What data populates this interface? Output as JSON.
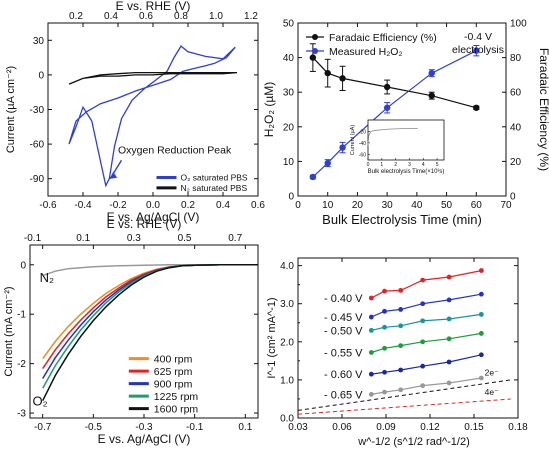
{
  "chart_data": [
    {
      "type": "line",
      "panel": "a",
      "xlabel": "E vs. Ag/AgCl (V)",
      "x2label": "E vs. RHE (V)",
      "ylabel": "Current (µA cm⁻²)",
      "xlim": [
        -0.6,
        0.6
      ],
      "ylim": [
        -105,
        45
      ],
      "xticks": [
        "-0.6",
        "-0.4",
        "-0.2",
        "0.0",
        "0.2",
        "0.4",
        "0.6"
      ],
      "x2ticks": [
        "0.2",
        "0.4",
        "0.6",
        "0.8",
        "1.0",
        "1.2"
      ],
      "yticks": [
        "30",
        "0",
        "-30",
        "-60",
        "-90"
      ],
      "legend": [
        "O₂ saturated PBS",
        "N₂ saturated PBS"
      ],
      "annotation": "Oxygen Reduction Peak",
      "colors": {
        "o2": "#2d3fd6",
        "n2": "#111111"
      },
      "series": [
        {
          "name": "O₂ saturated PBS",
          "x": [
            -0.48,
            -0.44,
            -0.4,
            -0.35,
            -0.3,
            -0.27,
            -0.25,
            -0.22,
            -0.18,
            -0.12,
            -0.05,
            0.02,
            0.08,
            0.12,
            0.16,
            0.2,
            0.3,
            0.4,
            0.47,
            0.42,
            0.35,
            0.3,
            0.22,
            0.17,
            0.15,
            0.1,
            0.0,
            -0.1,
            -0.2,
            -0.3,
            -0.38,
            -0.44,
            -0.48
          ],
          "y": [
            -60,
            -45,
            -28,
            -40,
            -75,
            -96,
            -90,
            -62,
            -38,
            -22,
            -12,
            -4,
            3,
            15,
            25,
            20,
            16,
            14,
            24,
            15,
            10,
            8,
            5,
            3,
            1,
            -4,
            -9,
            -14,
            -20,
            -25,
            -32,
            -40,
            -60
          ]
        },
        {
          "name": "N₂ saturated PBS",
          "x": [
            -0.48,
            -0.4,
            -0.3,
            -0.2,
            -0.1,
            0.0,
            0.1,
            0.2,
            0.3,
            0.4,
            0.48,
            0.4,
            0.3,
            0.2,
            0.1,
            0.0,
            -0.1,
            -0.2,
            -0.3,
            -0.4,
            -0.48
          ],
          "y": [
            -8,
            -3,
            0,
            1,
            2,
            2,
            2,
            2,
            2,
            2,
            2,
            1,
            1,
            1,
            1,
            0,
            0,
            -1,
            -1,
            -3,
            -8
          ]
        }
      ]
    },
    {
      "type": "line",
      "panel": "b",
      "xlabel": "Bulk Electrolysis Time (min)",
      "ylabel": "H₂O₂ (µM)",
      "y2label": "Faradaic Efficiency (%)",
      "xlim": [
        0,
        70
      ],
      "ylim": [
        0,
        50
      ],
      "y2lim": [
        0,
        100
      ],
      "xticks": [
        "0",
        "10",
        "20",
        "30",
        "40",
        "50",
        "60",
        "70"
      ],
      "yticks": [
        "0",
        "10",
        "20",
        "30",
        "40",
        "50"
      ],
      "y2ticks": [
        "0",
        "20",
        "40",
        "60",
        "80",
        "100"
      ],
      "annotation": "-0.4 V electrolysis",
      "series": [
        {
          "name": "Faradaic Efficiency (%)",
          "axis": "right",
          "color": "#111111",
          "x": [
            5,
            10,
            15,
            30,
            45,
            60
          ],
          "y": [
            80,
            71,
            68,
            63,
            58,
            51
          ],
          "err": [
            8,
            8,
            7,
            4,
            2,
            1
          ]
        },
        {
          "name": "Measured H₂O₂",
          "axis": "left",
          "color": "#2d3fd6",
          "x": [
            5,
            10,
            15,
            30,
            45,
            60
          ],
          "y": [
            5.5,
            9.5,
            14,
            25.5,
            35.5,
            42
          ],
          "err": [
            0.5,
            1,
            1.5,
            1.5,
            1,
            1.5
          ]
        }
      ],
      "inset": {
        "xlabel": "Bulk electrolysis Time(×10³s)",
        "ylabel": "Current (µA)",
        "xticks": [
          "0",
          "1",
          "2",
          "3",
          "4",
          "5"
        ],
        "yticks": [
          "-20",
          "-40",
          "-60"
        ],
        "series": [
          {
            "x": [
              0,
              0.05,
              0.2,
              0.6,
              1.5,
              2.5,
              3.6
            ],
            "y": [
              -45,
              -28,
              -20,
              -18,
              -16,
              -15,
              -15
            ]
          }
        ]
      }
    },
    {
      "type": "line",
      "panel": "c",
      "xlabel": "E vs. Ag/AgCl (V)",
      "x2label": "E vs. RHE (V)",
      "ylabel": "Current (mA cm⁻²)",
      "xlim": [
        -0.75,
        0.15
      ],
      "ylim": [
        -3.1,
        0.4
      ],
      "xticks": [
        "-0.7",
        "-0.5",
        "-0.3",
        "-0.1",
        "0.1"
      ],
      "x2ticks": [
        "-0.1",
        "0.1",
        "0.3",
        "0.5",
        "0.7"
      ],
      "yticks": [
        "0",
        "-1",
        "-2",
        "-3"
      ],
      "labels": [
        "N₂",
        "O₂"
      ],
      "series": [
        {
          "name": "N₂",
          "color": "#999999",
          "x": [
            -0.7,
            -0.65,
            -0.6,
            -0.5,
            -0.4,
            -0.3,
            -0.2,
            -0.1,
            0.0,
            0.1,
            0.15
          ],
          "y": [
            -0.22,
            -0.13,
            -0.08,
            -0.04,
            -0.02,
            -0.01,
            0,
            0,
            0,
            0,
            0
          ]
        },
        {
          "name": "400 rpm",
          "color": "#f28c1c",
          "x": [
            -0.7,
            -0.65,
            -0.6,
            -0.55,
            -0.5,
            -0.45,
            -0.4,
            -0.35,
            -0.3,
            -0.25,
            -0.2,
            -0.15,
            -0.1,
            0.0,
            0.1,
            0.15
          ],
          "y": [
            -1.9,
            -1.55,
            -1.25,
            -1.0,
            -0.78,
            -0.58,
            -0.42,
            -0.28,
            -0.17,
            -0.09,
            -0.04,
            -0.02,
            -0.01,
            0,
            0,
            0
          ]
        },
        {
          "name": "625 rpm",
          "color": "#e82020",
          "x": [
            -0.7,
            -0.65,
            -0.6,
            -0.55,
            -0.5,
            -0.45,
            -0.4,
            -0.35,
            -0.3,
            -0.25,
            -0.2,
            -0.15,
            -0.1,
            0.0,
            0.1,
            0.15
          ],
          "y": [
            -2.1,
            -1.72,
            -1.4,
            -1.12,
            -0.87,
            -0.65,
            -0.47,
            -0.31,
            -0.19,
            -0.1,
            -0.05,
            -0.02,
            -0.01,
            0,
            0,
            0
          ]
        },
        {
          "name": "900 rpm",
          "color": "#2232c8",
          "x": [
            -0.7,
            -0.65,
            -0.6,
            -0.55,
            -0.5,
            -0.45,
            -0.4,
            -0.35,
            -0.3,
            -0.25,
            -0.2,
            -0.15,
            -0.1,
            0.0,
            0.1,
            0.15
          ],
          "y": [
            -2.3,
            -1.88,
            -1.53,
            -1.22,
            -0.95,
            -0.71,
            -0.51,
            -0.34,
            -0.21,
            -0.11,
            -0.05,
            -0.02,
            -0.01,
            0,
            0,
            0
          ]
        },
        {
          "name": "1225 rpm",
          "color": "#1a9e6a",
          "x": [
            -0.7,
            -0.65,
            -0.6,
            -0.55,
            -0.5,
            -0.45,
            -0.4,
            -0.35,
            -0.3,
            -0.25,
            -0.2,
            -0.15,
            -0.1,
            0.0,
            0.1,
            0.15
          ],
          "y": [
            -2.5,
            -2.04,
            -1.66,
            -1.32,
            -1.03,
            -0.77,
            -0.55,
            -0.37,
            -0.23,
            -0.12,
            -0.06,
            -0.02,
            -0.01,
            0,
            0,
            0
          ]
        },
        {
          "name": "1600 rpm",
          "color": "#111111",
          "x": [
            -0.7,
            -0.65,
            -0.6,
            -0.55,
            -0.5,
            -0.45,
            -0.4,
            -0.35,
            -0.3,
            -0.25,
            -0.2,
            -0.15,
            -0.1,
            0.0,
            0.1,
            0.15
          ],
          "y": [
            -2.75,
            -2.24,
            -1.82,
            -1.45,
            -1.13,
            -0.85,
            -0.61,
            -0.41,
            -0.25,
            -0.13,
            -0.06,
            -0.02,
            -0.01,
            0,
            0,
            0
          ]
        }
      ]
    },
    {
      "type": "scatter",
      "panel": "d",
      "xlabel": "w^-1/2 (s^1/2 rad^-1/2)",
      "ylabel": "I^-1 (cm² mA^-1)",
      "xlim": [
        0.03,
        0.18
      ],
      "ylim": [
        0.0,
        4.2
      ],
      "xticks": [
        "0.03",
        "0.06",
        "0.09",
        "0.12",
        "0.15",
        "0.18"
      ],
      "yticks": [
        "0.0",
        "1.0",
        "2.0",
        "3.0",
        "4.0"
      ],
      "yminor": [
        "0.5",
        "1.5",
        "2.5",
        "3.5"
      ],
      "x": [
        0.08,
        0.089,
        0.1,
        0.115,
        0.133,
        0.155
      ],
      "series": [
        {
          "name": "- 0.40 V",
          "color": "#e82020",
          "y": [
            3.15,
            3.33,
            3.35,
            3.62,
            3.7,
            3.87
          ]
        },
        {
          "name": "- 0.45 V",
          "color": "#2232c8",
          "y": [
            2.65,
            2.8,
            2.85,
            3.0,
            3.1,
            3.25
          ]
        },
        {
          "name": "- 0.50 V",
          "color": "#17959e",
          "y": [
            2.3,
            2.38,
            2.42,
            2.55,
            2.6,
            2.72
          ]
        },
        {
          "name": "- 0.55 V",
          "color": "#1a9e3a",
          "y": [
            1.72,
            1.83,
            1.9,
            2.0,
            2.08,
            2.22
          ]
        },
        {
          "name": "- 0.60 V",
          "color": "#1a2a9e",
          "y": [
            1.15,
            1.2,
            1.26,
            1.36,
            1.47,
            1.66
          ]
        },
        {
          "name": "- 0.65 V",
          "color": "#999999",
          "y": [
            0.62,
            0.68,
            0.74,
            0.85,
            0.92,
            1.05
          ]
        }
      ],
      "reference_lines": [
        {
          "name": "2e⁻",
          "color": "#111111",
          "x": [
            0.03,
            0.175
          ],
          "y": [
            0.2,
            1.0
          ]
        },
        {
          "name": "4e⁻",
          "color": "#e82020",
          "x": [
            0.03,
            0.175
          ],
          "y": [
            0.1,
            0.5
          ]
        }
      ]
    }
  ]
}
